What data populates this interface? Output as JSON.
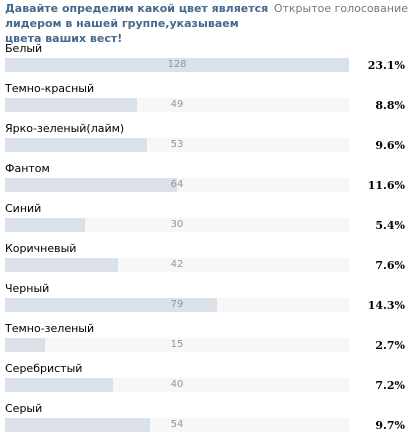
{
  "poll": {
    "title": "Давайте определим какой цвет является лидером в нашей группе,указываем цвета ваших вест!",
    "type_label": "Открытое голосование",
    "answers": [
      {
        "label": "Белый",
        "count": "128",
        "percent": "23.1%",
        "fraction": 1.0
      },
      {
        "label": "Темно-красный",
        "count": "49",
        "percent": "8.8%",
        "fraction": 0.383
      },
      {
        "label": "Ярко-зеленый(лайм)",
        "count": "53",
        "percent": "9.6%",
        "fraction": 0.414
      },
      {
        "label": "Фантом",
        "count": "64",
        "percent": "11.6%",
        "fraction": 0.5
      },
      {
        "label": "Синий",
        "count": "30",
        "percent": "5.4%",
        "fraction": 0.234
      },
      {
        "label": "Коричневый",
        "count": "42",
        "percent": "7.6%",
        "fraction": 0.328
      },
      {
        "label": "Черный",
        "count": "79",
        "percent": "14.3%",
        "fraction": 0.617
      },
      {
        "label": "Темно-зеленый",
        "count": "15",
        "percent": "2.7%",
        "fraction": 0.117
      },
      {
        "label": "Серебристый",
        "count": "40",
        "percent": "7.2%",
        "fraction": 0.313
      },
      {
        "label": "Серый",
        "count": "54",
        "percent": "9.7%",
        "fraction": 0.422
      }
    ]
  },
  "colors": {
    "title": "#45688e",
    "bar_fill": "#dae1e8",
    "bar_track": "#f7f7f7",
    "count_text": "#8a97a6",
    "type_text": "#777777"
  }
}
